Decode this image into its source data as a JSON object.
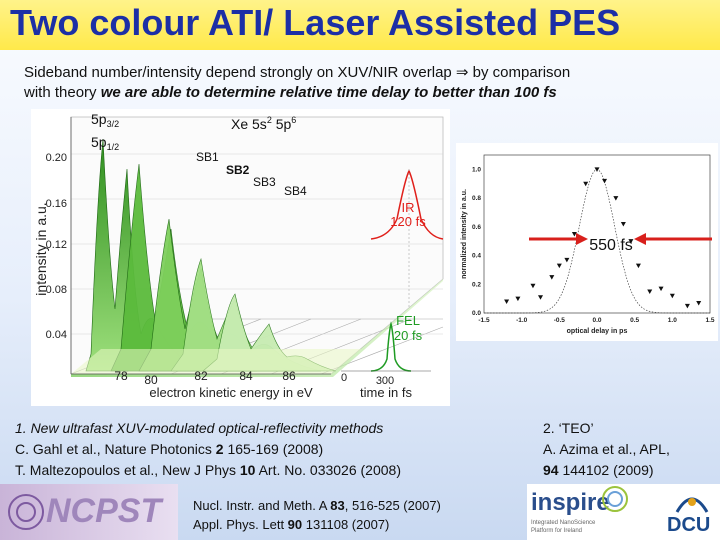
{
  "header": {
    "title": "Two colour ATI/ Laser Assisted PES"
  },
  "subtitle": {
    "line1_start": "Sideband number/intensity depend strongly on XUV/NIR overlap ",
    "arrow": "⇒",
    "line1_end": " by comparison",
    "line2_plain": "with theory ",
    "line2_italic": "we are able to determine relative time delay to better than 100 fs"
  },
  "left_figure": {
    "ylabel": "intensity in a.u.",
    "yticks": [
      "0.04",
      "0.08",
      "0.12",
      "0.16",
      "0.20"
    ],
    "xticks": [
      "78",
      "80",
      "82",
      "84",
      "86"
    ],
    "xlabel": "electron kinetic energy in eV",
    "time_ticks": [
      "0",
      "300"
    ],
    "time_label": "time in fs",
    "peak_label_5p32_main": "5p",
    "peak_label_5p32_sub": "3/2",
    "peak_label_5p12_main": "5p",
    "peak_label_5p12_sub": "1/2",
    "xe_label": "Xe 5s",
    "xe_sup1": "2",
    "xe_mid": " 5p",
    "xe_sup2": "6",
    "sb1": "SB1",
    "sb2": "SB2",
    "sb3": "SB3",
    "sb4": "SB4",
    "ir_label": "IR",
    "ir_fs": "120 fs",
    "fel_label": "FEL",
    "fel_fs": "20 fs",
    "colors": {
      "green_dark": "#2d8a1e",
      "green_light": "#a8e38c",
      "ir_red": "#e0201b",
      "fel_green": "#1f9b23"
    }
  },
  "right_figure": {
    "ylabel": "normalized intensity in a.u.",
    "xlabel": "optical delay in ps",
    "yticks": [
      "0.0",
      "0.2",
      "0.4",
      "0.6",
      "0.8",
      "1.0"
    ],
    "xticks": [
      "-1.5",
      "-1.0",
      "-0.5",
      "0.0",
      "0.5",
      "1.0",
      "1.5"
    ],
    "fwhm_label": "550 fs"
  },
  "chart_data": {
    "type": "scatter",
    "xlabel": "optical delay in ps",
    "ylabel": "normalized intensity in a.u.",
    "xlim": [
      -1.5,
      1.5
    ],
    "ylim": [
      0.0,
      1.1
    ],
    "series": [
      {
        "values_xy": [
          [
            -1.2,
            0.08
          ],
          [
            -1.05,
            0.1
          ],
          [
            -0.85,
            0.19
          ],
          [
            -0.75,
            0.11
          ],
          [
            -0.6,
            0.25
          ],
          [
            -0.5,
            0.33
          ],
          [
            -0.4,
            0.37
          ],
          [
            -0.3,
            0.55
          ],
          [
            -0.15,
            0.9
          ],
          [
            0.0,
            1.0
          ],
          [
            0.1,
            0.92
          ],
          [
            0.25,
            0.8
          ],
          [
            0.35,
            0.62
          ],
          [
            0.45,
            0.5
          ],
          [
            0.55,
            0.33
          ],
          [
            0.7,
            0.15
          ],
          [
            0.85,
            0.17
          ],
          [
            1.0,
            0.12
          ],
          [
            1.2,
            0.05
          ],
          [
            1.35,
            0.07
          ]
        ]
      }
    ],
    "fit_fwhm_ps": 0.55
  },
  "references": {
    "left": {
      "line1": "1. New ultrafast XUV-modulated optical-reflectivity methods",
      "line2_a": "C. Gahl et al., Nature Photonics ",
      "line2_b": "2",
      "line2_c": " 165-169 (2008)",
      "line3_a": "T. Maltezopoulos et al., New J Phys ",
      "line3_b": "10",
      "line3_c": " Art. No. 033026 (2008)"
    },
    "right": {
      "line1": "2. ‘TEO’",
      "line2": "A. Azima et al., APL,",
      "line3_a": "94",
      "line3_b": " 144102 (2009)"
    }
  },
  "footer": {
    "ncpst": "NCPST",
    "cite1_a": "Nucl. Instr. and Meth. A ",
    "cite1_b": "83",
    "cite1_c": ", 516-525 (2007)",
    "cite2_a": "Appl. Phys. Lett ",
    "cite2_b": "90",
    "cite2_c": " 131108 (2007)",
    "inspire": "inspire",
    "inspire_sub1": "Integrated NanoScience",
    "inspire_sub2": "Platform for Ireland",
    "dcu": "DCU"
  }
}
